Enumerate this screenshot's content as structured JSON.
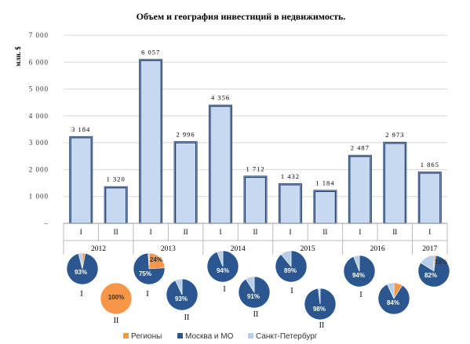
{
  "chart_data": [
    {
      "type": "bar",
      "title": "Объем и география инвестиций в недвижимость.",
      "ylabel": "млн. $",
      "ylim": [
        0,
        7000
      ],
      "yticks": [
        "–",
        "1 000",
        "2 000",
        "3 000",
        "4 000",
        "5 000",
        "6 000",
        "7 000"
      ],
      "grid": true,
      "categories": [
        "I",
        "II",
        "I",
        "II",
        "I",
        "II",
        "I",
        "II",
        "I",
        "II",
        "I"
      ],
      "years": [
        {
          "label": "2012",
          "span": 2
        },
        {
          "label": "2013",
          "span": 2
        },
        {
          "label": "2014",
          "span": 2
        },
        {
          "label": "2015",
          "span": 2
        },
        {
          "label": "2016",
          "span": 2
        },
        {
          "label": "2017",
          "span": 1
        }
      ],
      "values": [
        3184,
        1320,
        6057,
        2996,
        4356,
        1712,
        1432,
        1184,
        2487,
        2973,
        1865
      ],
      "value_labels": [
        "3 184",
        "1 320",
        "6 057",
        "2 996",
        "4 356",
        "1 712",
        "1 432",
        "1 184",
        "2 487",
        "2 973",
        "1 865"
      ],
      "bar_color": "#c6d9f1",
      "bar_border": "#1f3d6e"
    },
    {
      "type": "pie",
      "series": [
        {
          "name": "Регионы",
          "color": "#f79646"
        },
        {
          "name": "Москва и МО",
          "color": "#2b5690"
        },
        {
          "name": "Санкт-Петербург",
          "color": "#b7cde8"
        }
      ],
      "pies": [
        {
          "label": "I",
          "values": [
            3,
            93,
            4
          ],
          "value_label": "93%",
          "minor_label": ""
        },
        {
          "label": "II",
          "values": [
            100,
            0,
            0
          ],
          "value_label": "100%",
          "minor_label": ""
        },
        {
          "label": "I",
          "values": [
            24,
            75,
            1
          ],
          "value_label": "75%",
          "minor_label": "24%"
        },
        {
          "label": "II",
          "values": [
            0,
            93,
            7
          ],
          "value_label": "93%",
          "minor_label": ""
        },
        {
          "label": "I",
          "values": [
            0,
            94,
            6
          ],
          "value_label": "94%",
          "minor_label": ""
        },
        {
          "label": "II",
          "values": [
            0,
            91,
            9
          ],
          "value_label": "91%",
          "minor_label": ""
        },
        {
          "label": "I",
          "values": [
            0,
            89,
            11
          ],
          "value_label": "89%",
          "minor_label": ""
        },
        {
          "label": "II",
          "values": [
            0,
            98,
            2
          ],
          "value_label": "98%",
          "minor_label": ""
        },
        {
          "label": "I",
          "values": [
            0,
            94,
            6
          ],
          "value_label": "94%",
          "minor_label": ""
        },
        {
          "label": "II",
          "values": [
            9,
            84,
            7
          ],
          "value_label": "84%",
          "minor_label": ""
        },
        {
          "label": "I",
          "values": [
            2,
            82,
            16
          ],
          "value_label": "82%",
          "minor_label": "16%"
        }
      ],
      "legend_position": "bottom"
    }
  ]
}
